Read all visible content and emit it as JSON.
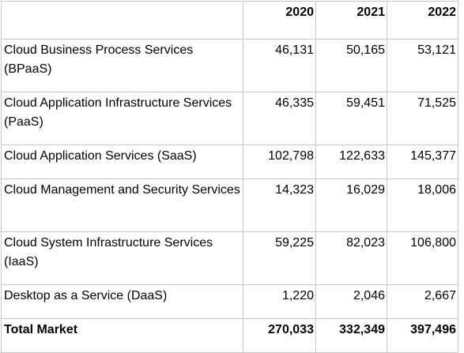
{
  "header": {
    "col0": "",
    "col1": "2020",
    "col2": "2021",
    "col3": "2022"
  },
  "rows": [
    {
      "label": "Cloud Business Process Services (BPaaS)",
      "v2020": "46,131",
      "v2021": "50,165",
      "v2022": "53,121"
    },
    {
      "label": "Cloud Application Infrastructure Services (PaaS)",
      "v2020": "46,335",
      "v2021": "59,451",
      "v2022": "71,525"
    },
    {
      "label": "Cloud Application Services (SaaS)",
      "v2020": "102,798",
      "v2021": "122,633",
      "v2022": "145,377"
    },
    {
      "label": "Cloud Management and Security Services",
      "v2020": "14,323",
      "v2021": "16,029",
      "v2022": "18,006"
    },
    {
      "label": "Cloud System Infrastructure Services (IaaS)",
      "v2020": "59,225",
      "v2021": "82,023",
      "v2022": "106,800"
    },
    {
      "label": "Desktop as a Service (DaaS)",
      "v2020": "1,220",
      "v2021": "2,046",
      "v2022": "2,667"
    }
  ],
  "total": {
    "label": "Total Market",
    "v2020": "270,033",
    "v2021": "332,349",
    "v2022": "397,496"
  }
}
